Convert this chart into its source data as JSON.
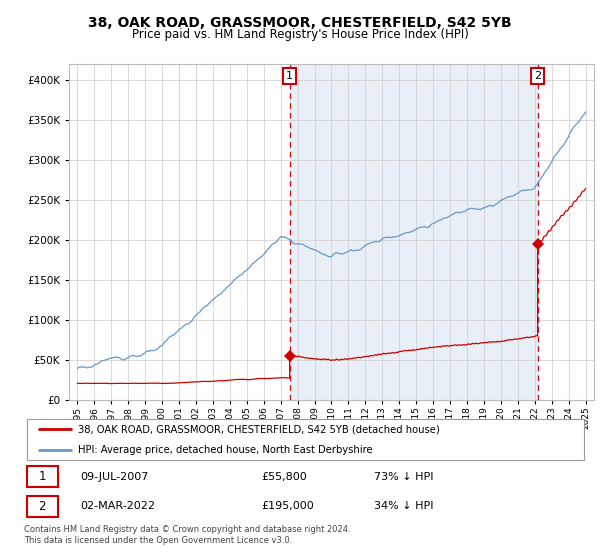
{
  "title": "38, OAK ROAD, GRASSMOOR, CHESTERFIELD, S42 5YB",
  "subtitle": "Price paid vs. HM Land Registry's House Price Index (HPI)",
  "red_label": "38, OAK ROAD, GRASSMOOR, CHESTERFIELD, S42 5YB (detached house)",
  "blue_label": "HPI: Average price, detached house, North East Derbyshire",
  "annotation1_date": "09-JUL-2007",
  "annotation1_price": "£55,800",
  "annotation1_hpi": "73% ↓ HPI",
  "annotation2_date": "02-MAR-2022",
  "annotation2_price": "£195,000",
  "annotation2_hpi": "34% ↓ HPI",
  "footnote": "Contains HM Land Registry data © Crown copyright and database right 2024.\nThis data is licensed under the Open Government Licence v3.0.",
  "red_color": "#cc0000",
  "blue_color": "#6699cc",
  "fill_color": "#ddeeff",
  "ylim": [
    0,
    420000
  ],
  "yticks": [
    0,
    50000,
    100000,
    150000,
    200000,
    250000,
    300000,
    350000,
    400000
  ],
  "marker1_x": 2007.53,
  "marker1_y_red": 55800,
  "marker2_x": 2022.17,
  "marker2_y_red": 195000,
  "xlim_left": 1994.5,
  "xlim_right": 2025.5
}
